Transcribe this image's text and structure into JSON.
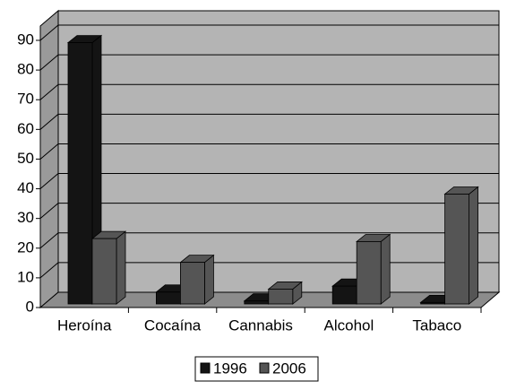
{
  "chart_data": {
    "type": "bar3d",
    "categories": [
      "Heroína",
      "Cocaína",
      "Cannabis",
      "Alcohol",
      "Tabaco"
    ],
    "series": [
      {
        "name": "1996",
        "color": "#141414",
        "values": [
          88,
          4,
          1,
          6,
          0.5
        ]
      },
      {
        "name": "2006",
        "color": "#555555",
        "values": [
          22,
          14,
          5,
          21,
          37
        ]
      }
    ],
    "ylim": [
      0,
      90
    ],
    "yticks": [
      0,
      10,
      20,
      30,
      40,
      50,
      60,
      70,
      80,
      90
    ],
    "grid": true,
    "legend": "bottom"
  }
}
